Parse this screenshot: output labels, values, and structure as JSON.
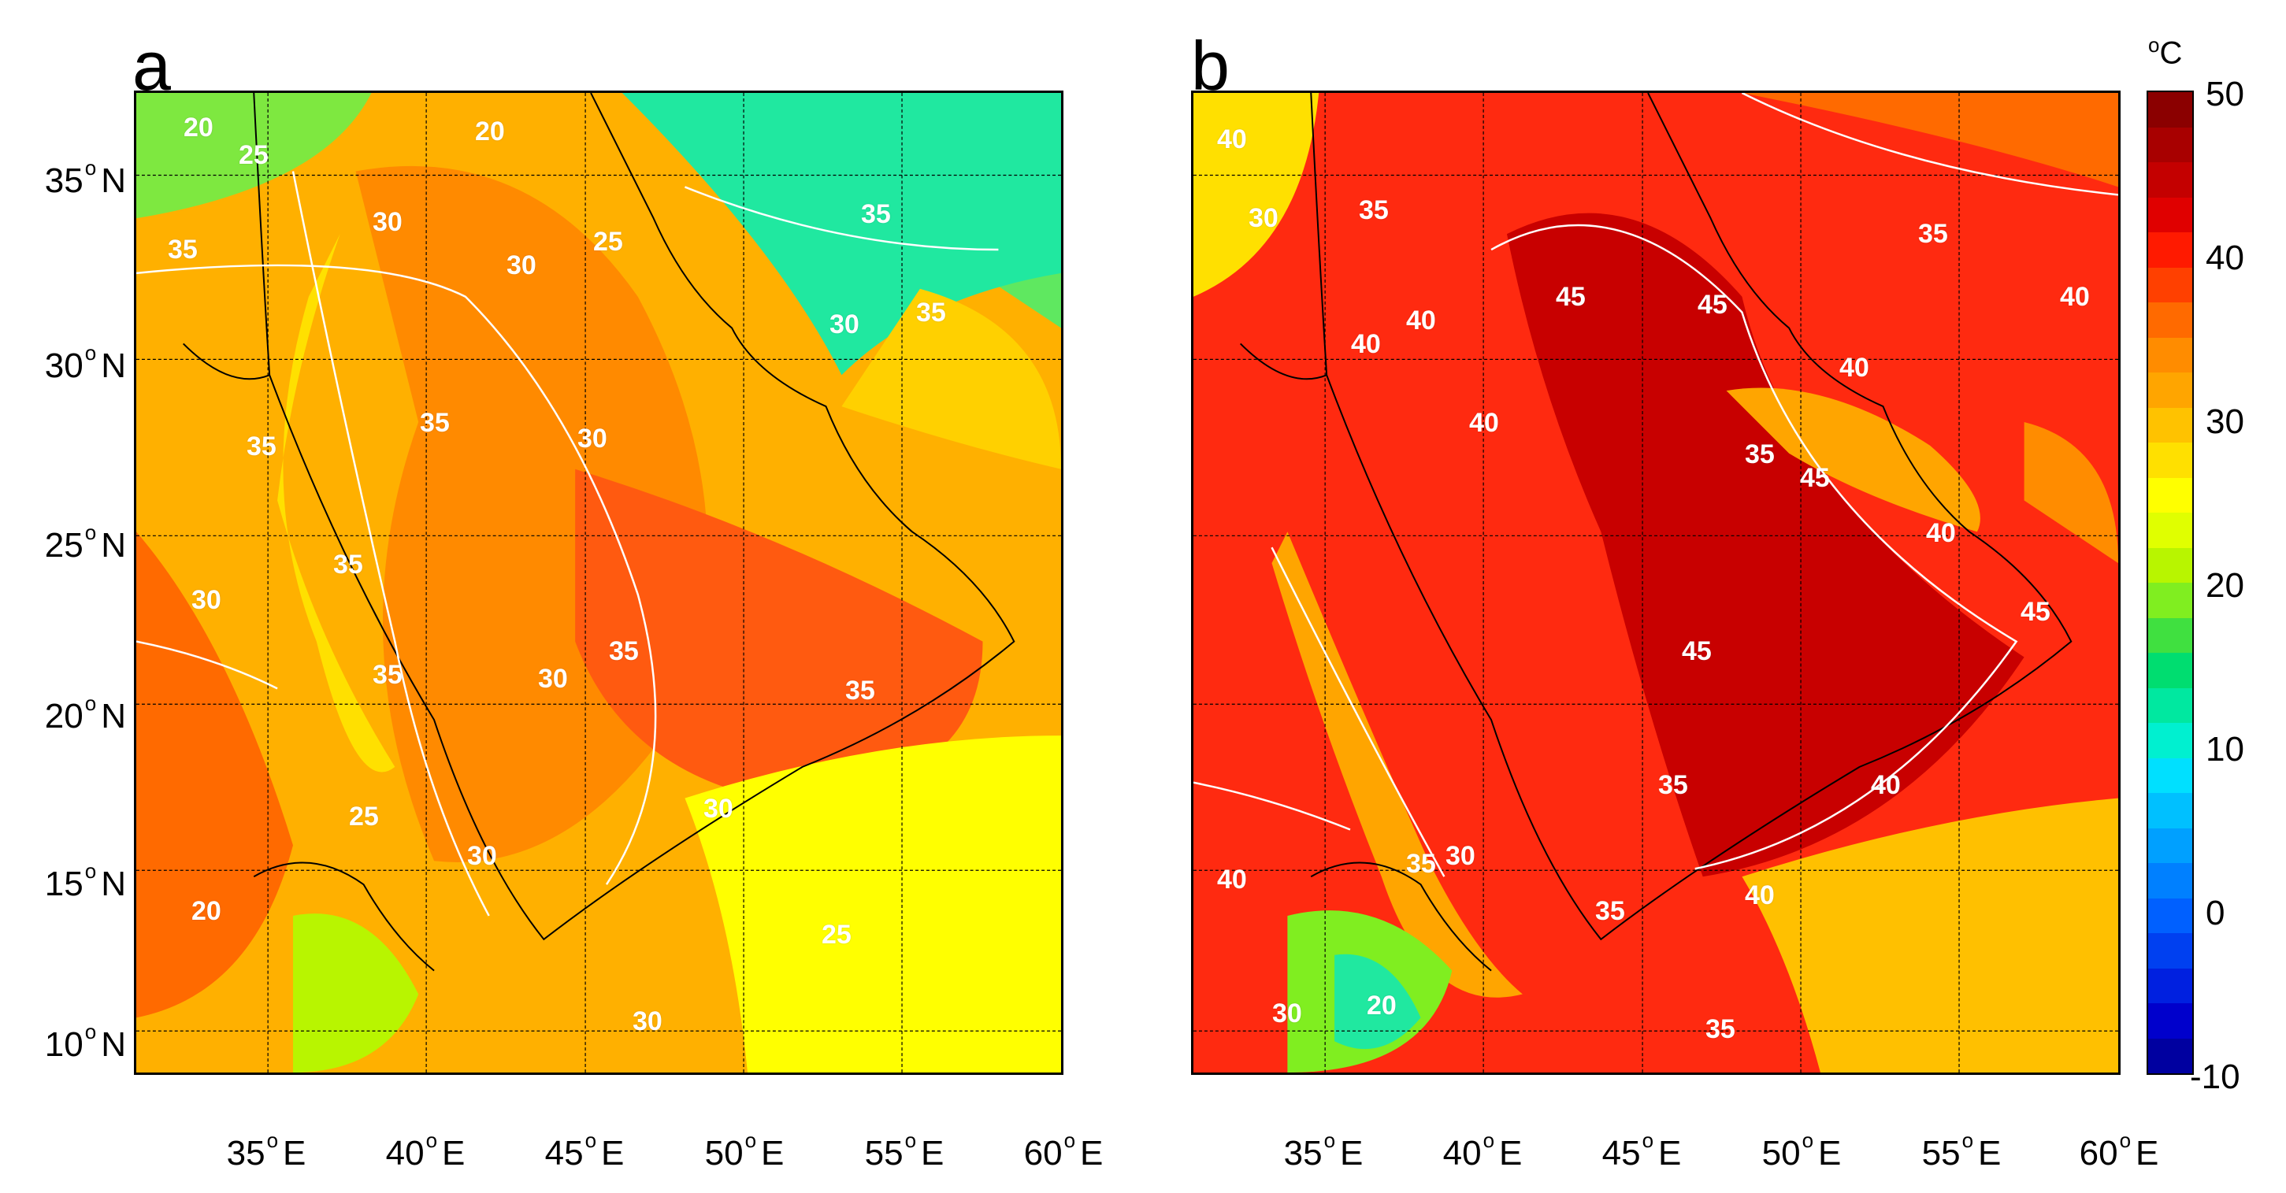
{
  "panels": [
    {
      "letter": "a",
      "field_name": "panel-a",
      "fill": "#f0901a",
      "contour_labels": [
        "20",
        "20",
        "25",
        "30",
        "35",
        "30",
        "35",
        "25",
        "30",
        "35",
        "30",
        "35",
        "35",
        "30",
        "35",
        "30",
        "25",
        "20",
        "35",
        "35",
        "30",
        "25",
        "30",
        "35",
        "30"
      ]
    },
    {
      "letter": "b",
      "field_name": "panel-b",
      "fill": "#ee2a14",
      "contour_labels": [
        "40",
        "30",
        "35",
        "45",
        "40",
        "45",
        "45",
        "40",
        "35",
        "40",
        "40",
        "45",
        "45",
        "40",
        "40",
        "35",
        "40",
        "35",
        "40",
        "30",
        "20",
        "35",
        "35",
        "40",
        "35",
        "30"
      ]
    }
  ],
  "latitude_labels": [
    "35",
    "30",
    "25",
    "20",
    "15",
    "10"
  ],
  "latitude_suffix": "N",
  "longitude_labels": [
    "35",
    "40",
    "45",
    "50",
    "55",
    "60"
  ],
  "longitude_suffix": "E",
  "degree_mark": "o",
  "colorbar": {
    "unit_mark": "o",
    "unit": "C",
    "tick_labels": [
      "50",
      "40",
      "30",
      "20",
      "10",
      "0",
      "-10"
    ],
    "range": [
      -10,
      50
    ],
    "colors": [
      "#8b0000",
      "#a80000",
      "#c40000",
      "#e00000",
      "#ff1a00",
      "#ff4000",
      "#ff6a00",
      "#ff8c00",
      "#ffa500",
      "#ffc200",
      "#ffe000",
      "#ffff00",
      "#e0ff00",
      "#b8f500",
      "#80ee20",
      "#40e040",
      "#00dd70",
      "#00e8a0",
      "#00f0d0",
      "#00e0ff",
      "#00c0ff",
      "#00a0ff",
      "#0080ff",
      "#0060ff",
      "#0040f0",
      "#0020e0",
      "#0000cc",
      "#0000a0"
    ]
  }
}
